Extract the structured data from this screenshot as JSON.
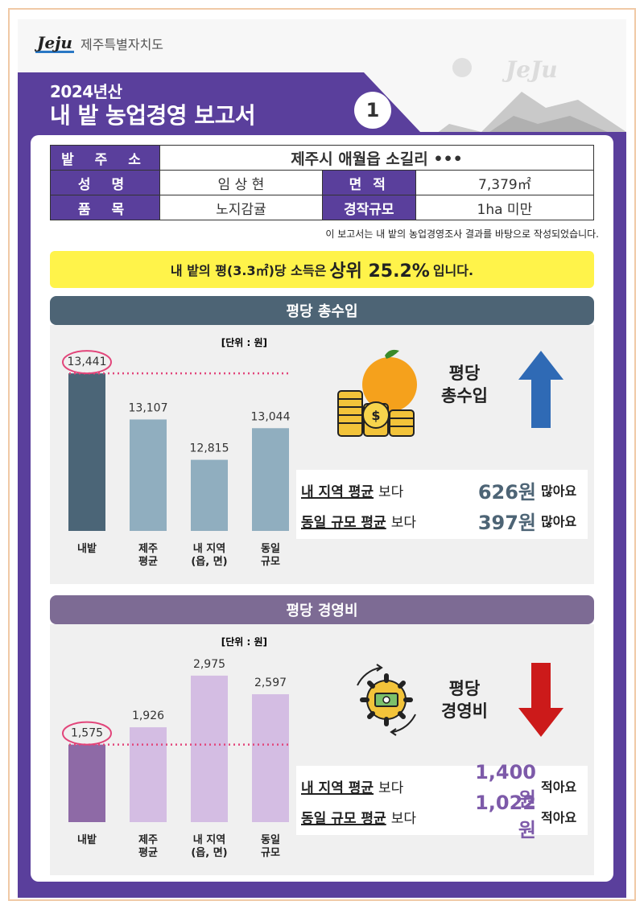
{
  "header": {
    "logo_text": "Jeju",
    "org_name": "제주특별자치도",
    "art_text": "JeJu",
    "year": "2024년산",
    "title": "내 밭 농업경영 보고서",
    "page_number": "1"
  },
  "info": {
    "address_label": "밭 주 소",
    "address_value": "제주시 애월읍 소길리 •••",
    "name_label": "성 명",
    "name_value": "임 상 현",
    "area_label": "면 적",
    "area_value": "7,379㎡",
    "crop_label": "품 목",
    "crop_value": "노지감귤",
    "scale_label": "경작규모",
    "scale_value": "1ha 미만",
    "note": "이 보고서는 내 밭의 농업경영조사  결과를 바탕으로 작성되었습니다."
  },
  "highlight": {
    "prefix": "내 밭의 평(3.3㎡)당 소득은",
    "rank": "상위 25.2%",
    "suffix": "입니다."
  },
  "revenue": {
    "section_title": "평당 총수입",
    "right_title_1": "평당",
    "right_title_2": "총수입",
    "comparisons": [
      {
        "label": "내 지역 평균",
        "conj": "보다",
        "value": "626원",
        "tail": "많아요"
      },
      {
        "label": "동일 규모 평균",
        "conj": "보다",
        "value": "397원",
        "tail": "많아요"
      }
    ],
    "colors": {
      "mine": "#4b6577",
      "other": "#90aebf",
      "accent": "#2f6ab5"
    }
  },
  "cost": {
    "section_title": "평당 경영비",
    "right_title_1": "평당",
    "right_title_2": "경영비",
    "comparisons": [
      {
        "label": "내 지역 평균",
        "conj": "보다",
        "value": "1,400원",
        "tail": "적아요"
      },
      {
        "label": "동일 규모 평균",
        "conj": "보다",
        "value": "1,022원",
        "tail": "적아요"
      }
    ],
    "colors": {
      "mine": "#8e6aa6",
      "other": "#d4bde3",
      "accent": "#cc1a1a"
    }
  },
  "chart_data": [
    {
      "type": "bar",
      "title": "평당 총수입",
      "unit": "[단위 : 원]",
      "categories": [
        "내밭",
        "제주\n평균",
        "내 지역\n(읍, 면)",
        "동일\n규모"
      ],
      "values": [
        13441,
        13107,
        12815,
        13044
      ],
      "value_labels": [
        "13,441",
        "13,107",
        "12,815",
        "13,044"
      ],
      "ylim": [
        12300,
        13500
      ]
    },
    {
      "type": "bar",
      "title": "평당 경영비",
      "unit": "[단위 : 원]",
      "categories": [
        "내밭",
        "제주\n평균",
        "내 지역\n(읍, 면)",
        "동일\n규모"
      ],
      "values": [
        1575,
        1926,
        2975,
        2597
      ],
      "value_labels": [
        "1,575",
        "1,926",
        "2,975",
        "2,597"
      ],
      "ylim": [
        0,
        3300
      ]
    }
  ]
}
